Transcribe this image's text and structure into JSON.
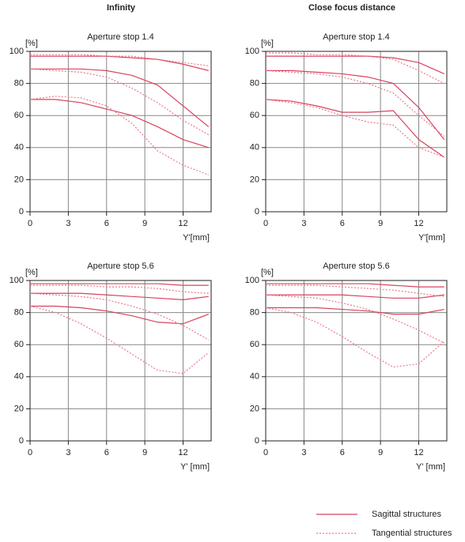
{
  "columns": [
    "Infinity",
    "Close focus distance"
  ],
  "legend": [
    {
      "label": "Sagittal structures",
      "dash": false,
      "color": "#d8435c"
    },
    {
      "label": "Tangential structures",
      "dash": true,
      "color": "#e77a8c"
    }
  ],
  "chart_data": [
    {
      "type": "line",
      "title": "Aperture stop 1.4",
      "xlabel": "Y'[mm]",
      "ylabel": "[%]",
      "x": [
        0,
        2,
        4,
        6,
        8,
        10,
        12,
        14
      ],
      "xlim": [
        0,
        14.2
      ],
      "ylim": [
        0,
        100
      ],
      "xticks": [
        0,
        3,
        6,
        9,
        12
      ],
      "yticks": [
        0,
        20,
        40,
        60,
        80,
        100
      ],
      "grid": true,
      "series": [
        {
          "color": "#d8435c",
          "dash": false,
          "values": [
            97,
            97,
            97,
            97,
            96,
            95,
            92,
            88
          ]
        },
        {
          "color": "#d8435c",
          "dash": false,
          "values": [
            89,
            89,
            89,
            88,
            85,
            79,
            66,
            53
          ]
        },
        {
          "color": "#d8435c",
          "dash": false,
          "values": [
            70,
            70,
            68,
            64,
            60,
            53,
            45,
            40
          ]
        },
        {
          "color": "#e77a8c",
          "dash": true,
          "values": [
            98,
            98,
            98,
            97,
            97,
            95,
            93,
            91
          ]
        },
        {
          "color": "#e77a8c",
          "dash": true,
          "values": [
            89,
            88,
            87,
            84,
            77,
            68,
            57,
            48
          ]
        },
        {
          "color": "#e77a8c",
          "dash": true,
          "values": [
            70,
            72,
            71,
            66,
            55,
            38,
            29,
            23
          ]
        }
      ]
    },
    {
      "type": "line",
      "title": "Aperture stop 1.4",
      "xlabel": "Y'[mm]",
      "ylabel": "[%]",
      "x": [
        0,
        2,
        4,
        6,
        8,
        10,
        12,
        14
      ],
      "xlim": [
        0,
        14.2
      ],
      "ylim": [
        0,
        100
      ],
      "xticks": [
        0,
        3,
        6,
        9,
        12
      ],
      "yticks": [
        0,
        20,
        40,
        60,
        80,
        100
      ],
      "grid": true,
      "series": [
        {
          "color": "#d8435c",
          "dash": false,
          "values": [
            97,
            97,
            97,
            97,
            97,
            96,
            93,
            86
          ]
        },
        {
          "color": "#d8435c",
          "dash": false,
          "values": [
            88,
            88,
            87,
            86,
            84,
            80,
            65,
            45
          ]
        },
        {
          "color": "#d8435c",
          "dash": false,
          "values": [
            70,
            69,
            66,
            62,
            62,
            63,
            45,
            34
          ]
        },
        {
          "color": "#e77a8c",
          "dash": true,
          "values": [
            99,
            99,
            98,
            98,
            97,
            95,
            88,
            80
          ]
        },
        {
          "color": "#e77a8c",
          "dash": true,
          "values": [
            88,
            87,
            86,
            84,
            80,
            74,
            60,
            47
          ]
        },
        {
          "color": "#e77a8c",
          "dash": true,
          "values": [
            70,
            68,
            65,
            60,
            56,
            54,
            40,
            34
          ]
        }
      ]
    },
    {
      "type": "line",
      "title": "Aperture stop 5.6",
      "xlabel": "Y' [mm]",
      "ylabel": "[%]",
      "x": [
        0,
        2,
        4,
        6,
        8,
        10,
        12,
        14
      ],
      "xlim": [
        0,
        14.2
      ],
      "ylim": [
        0,
        100
      ],
      "xticks": [
        0,
        3,
        6,
        9,
        12
      ],
      "yticks": [
        0,
        20,
        40,
        60,
        80,
        100
      ],
      "grid": true,
      "series": [
        {
          "color": "#d8435c",
          "dash": false,
          "values": [
            98,
            98,
            98,
            98,
            98,
            98,
            97,
            97
          ]
        },
        {
          "color": "#d8435c",
          "dash": false,
          "values": [
            92,
            92,
            92,
            91,
            90,
            89,
            88,
            90
          ]
        },
        {
          "color": "#d8435c",
          "dash": false,
          "values": [
            84,
            84,
            83,
            81,
            78,
            74,
            73,
            79
          ]
        },
        {
          "color": "#e77a8c",
          "dash": true,
          "values": [
            97,
            97,
            97,
            96,
            96,
            95,
            93,
            92
          ]
        },
        {
          "color": "#e77a8c",
          "dash": true,
          "values": [
            92,
            91,
            90,
            88,
            84,
            79,
            72,
            63
          ]
        },
        {
          "color": "#e77a8c",
          "dash": true,
          "values": [
            84,
            80,
            73,
            64,
            54,
            44,
            42,
            55
          ]
        }
      ]
    },
    {
      "type": "line",
      "title": "Aperture stop 5.6",
      "xlabel": "Y' [mm]",
      "ylabel": "[%]",
      "x": [
        0,
        2,
        4,
        6,
        8,
        10,
        12,
        14
      ],
      "xlim": [
        0,
        14.2
      ],
      "ylim": [
        0,
        100
      ],
      "xticks": [
        0,
        3,
        6,
        9,
        12
      ],
      "yticks": [
        0,
        20,
        40,
        60,
        80,
        100
      ],
      "grid": true,
      "series": [
        {
          "color": "#d8435c",
          "dash": false,
          "values": [
            98,
            98,
            98,
            98,
            98,
            97,
            96,
            96
          ]
        },
        {
          "color": "#d8435c",
          "dash": false,
          "values": [
            91,
            91,
            91,
            91,
            90,
            89,
            89,
            91
          ]
        },
        {
          "color": "#d8435c",
          "dash": false,
          "values": [
            83,
            83,
            83,
            82,
            81,
            79,
            79,
            82
          ]
        },
        {
          "color": "#e77a8c",
          "dash": true,
          "values": [
            97,
            97,
            97,
            96,
            95,
            94,
            92,
            90
          ]
        },
        {
          "color": "#e77a8c",
          "dash": true,
          "values": [
            91,
            90,
            89,
            86,
            82,
            76,
            69,
            61
          ]
        },
        {
          "color": "#e77a8c",
          "dash": true,
          "values": [
            83,
            80,
            74,
            65,
            55,
            46,
            48,
            62
          ]
        }
      ]
    }
  ]
}
